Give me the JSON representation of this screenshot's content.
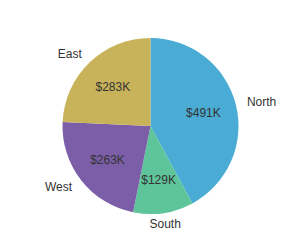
{
  "chart_data": {
    "type": "pie",
    "categories": [
      "North",
      "South",
      "West",
      "East"
    ],
    "values": [
      491,
      129,
      263,
      283
    ],
    "value_labels": [
      "$491K",
      "$129K",
      "$263K",
      "$283K"
    ],
    "colors": [
      "#4aacd4",
      "#5ec49a",
      "#7b5ea7",
      "#c9b35a"
    ],
    "data_labels": true
  }
}
